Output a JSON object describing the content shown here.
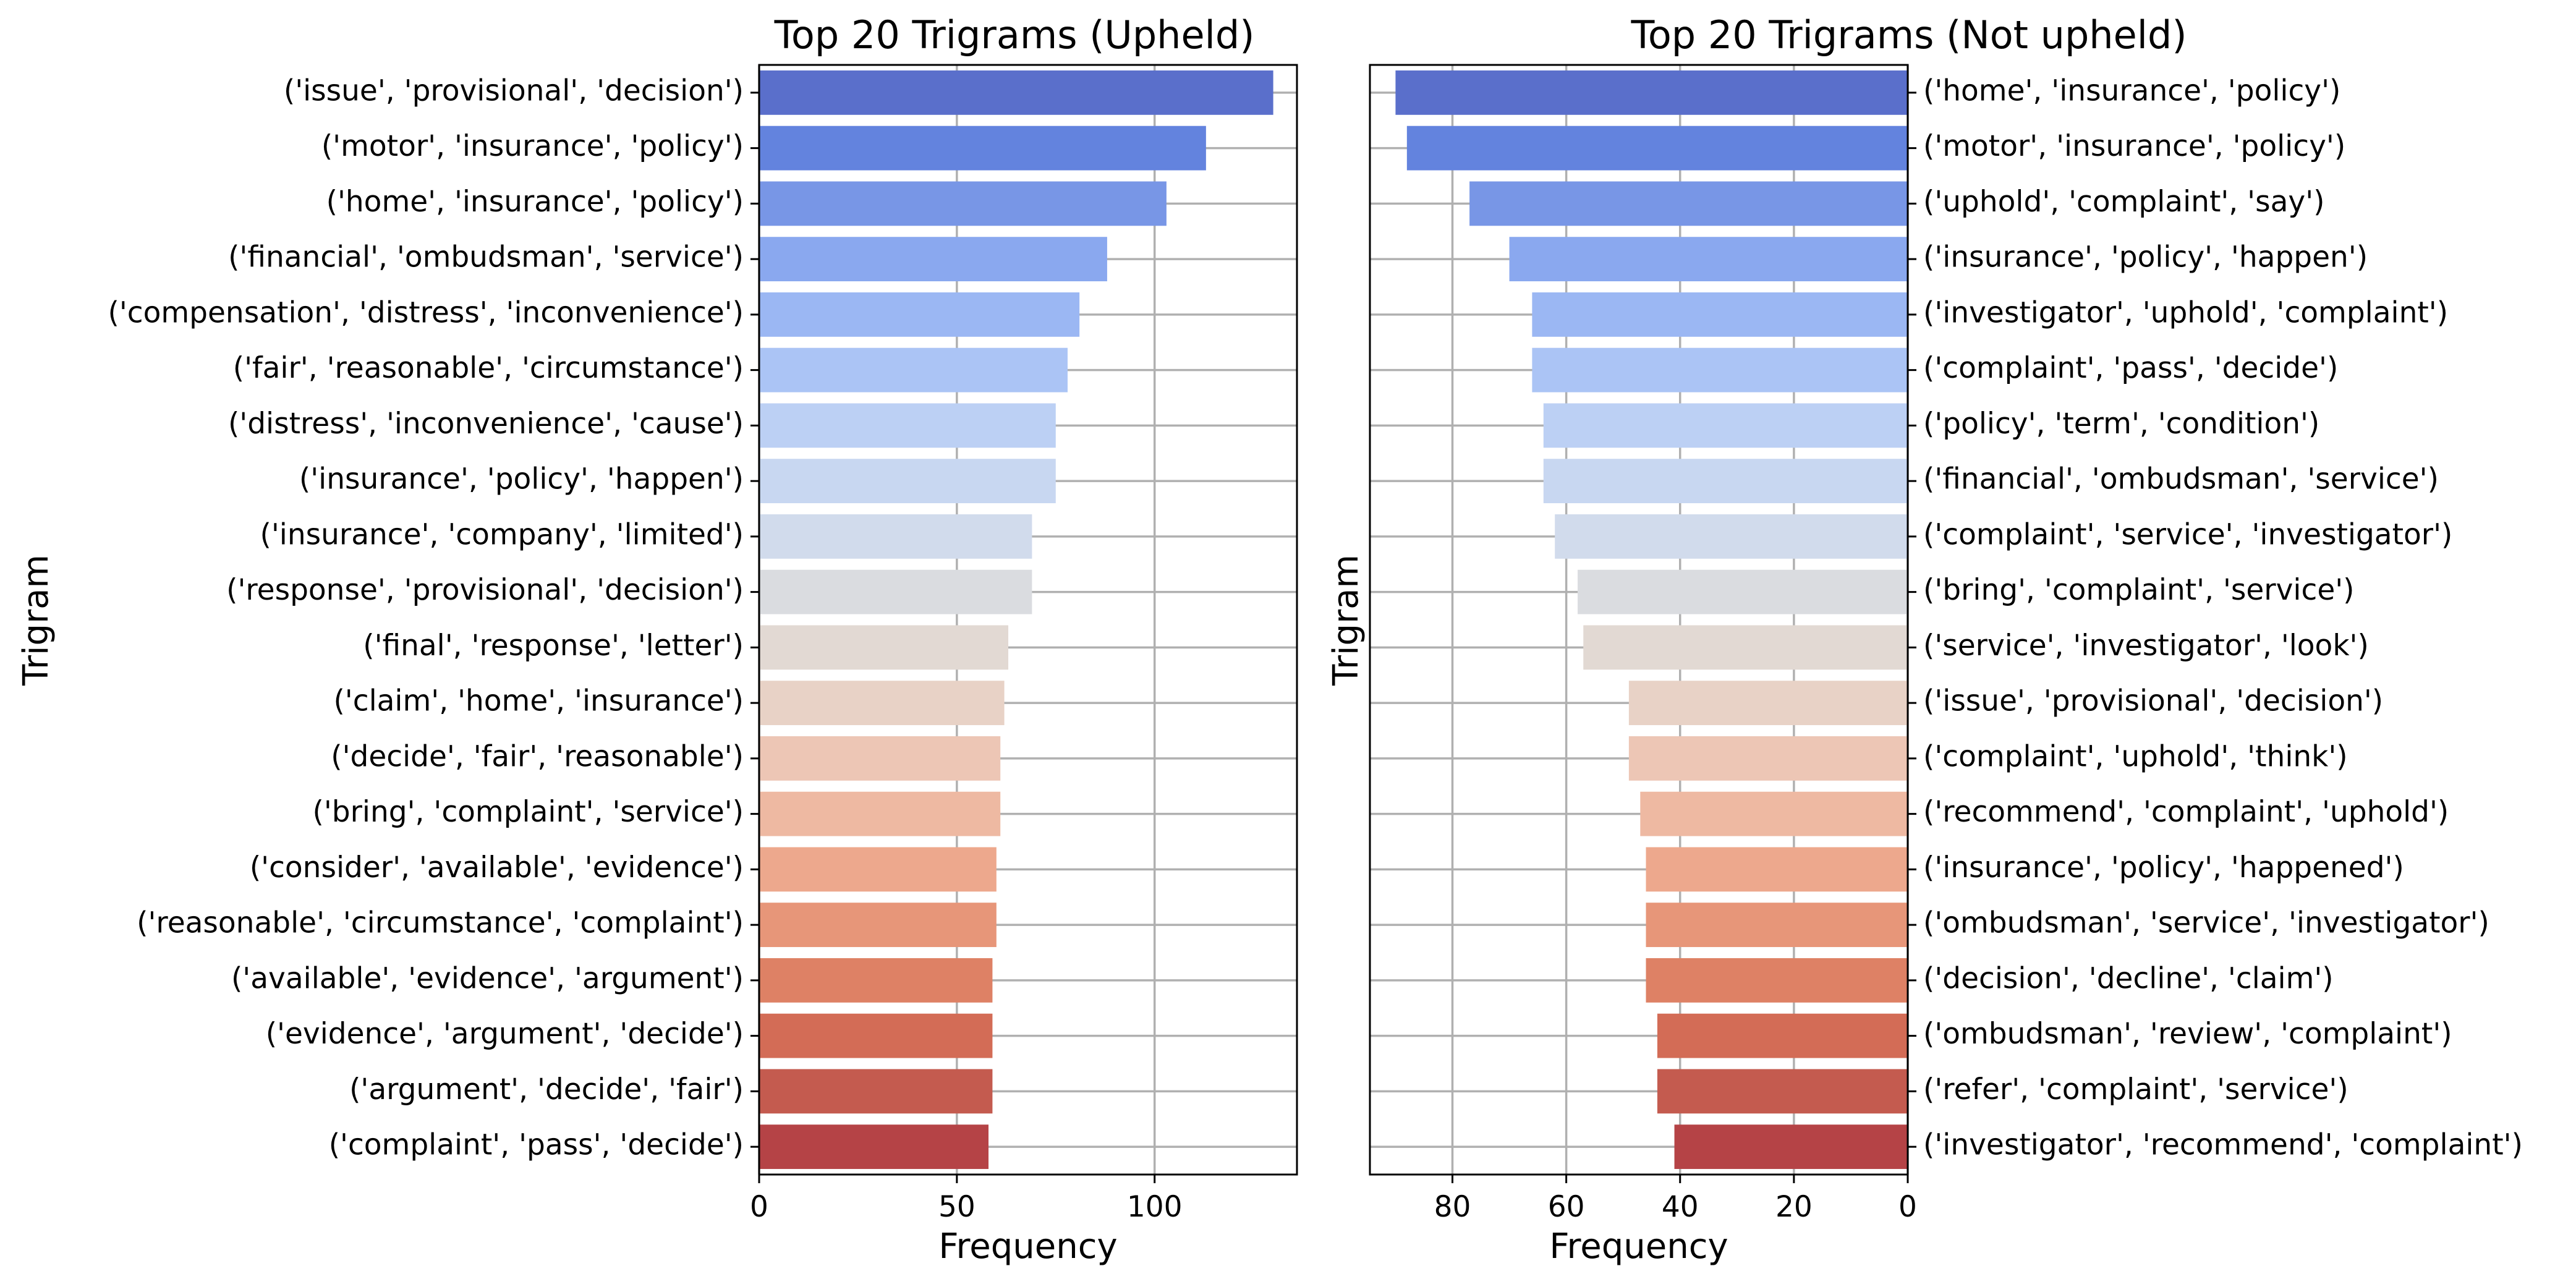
{
  "chart_data": [
    {
      "type": "bar",
      "orientation": "horizontal",
      "title": "Top 20 Trigrams (Upheld)",
      "xlabel": "Frequency",
      "ylabel": "Trigram",
      "xlim": [
        0,
        136
      ],
      "xticks": [
        0,
        50,
        100
      ],
      "x_inverted": false,
      "category_side": "left",
      "grid": true,
      "categories": [
        "('issue', 'provisional', 'decision')",
        "('motor', 'insurance', 'policy')",
        "('home', 'insurance', 'policy')",
        "('financial', 'ombudsman', 'service')",
        "('compensation', 'distress', 'inconvenience')",
        "('fair', 'reasonable', 'circumstance')",
        "('distress', 'inconvenience', 'cause')",
        "('insurance', 'policy', 'happen')",
        "('insurance', 'company', 'limited')",
        "('response', 'provisional', 'decision')",
        "('final', 'response', 'letter')",
        "('claim', 'home', 'insurance')",
        "('decide', 'fair', 'reasonable')",
        "('bring', 'complaint', 'service')",
        "('consider', 'available', 'evidence')",
        "('reasonable', 'circumstance', 'complaint')",
        "('available', 'evidence', 'argument')",
        "('evidence', 'argument', 'decide')",
        "('argument', 'decide', 'fair')",
        "('complaint', 'pass', 'decide')"
      ],
      "values": [
        130,
        113,
        103,
        88,
        81,
        78,
        75,
        75,
        69,
        69,
        63,
        62,
        61,
        61,
        60,
        60,
        59,
        59,
        59,
        58
      ]
    },
    {
      "type": "bar",
      "orientation": "horizontal",
      "title": "Top 20 Trigrams (Not upheld)",
      "xlabel": "Frequency",
      "ylabel": "Trigram",
      "xlim": [
        0,
        94.5
      ],
      "xticks": [
        80,
        60,
        40,
        20,
        0
      ],
      "x_inverted": true,
      "category_side": "right",
      "grid": true,
      "categories": [
        "('home', 'insurance', 'policy')",
        "('motor', 'insurance', 'policy')",
        "('uphold', 'complaint', 'say')",
        "('insurance', 'policy', 'happen')",
        "('investigator', 'uphold', 'complaint')",
        "('complaint', 'pass', 'decide')",
        "('policy', 'term', 'condition')",
        "('financial', 'ombudsman', 'service')",
        "('complaint', 'service', 'investigator')",
        "('bring', 'complaint', 'service')",
        "('service', 'investigator', 'look')",
        "('issue', 'provisional', 'decision')",
        "('complaint', 'uphold', 'think')",
        "('recommend', 'complaint', 'uphold')",
        "('insurance', 'policy', 'happened')",
        "('ombudsman', 'service', 'investigator')",
        "('decision', 'decline', 'claim')",
        "('ombudsman', 'review', 'complaint')",
        "('refer', 'complaint', 'service')",
        "('investigator', 'recommend', 'complaint')"
      ],
      "values": [
        90,
        88,
        77,
        70,
        66,
        66,
        64,
        64,
        62,
        58,
        57,
        49,
        49,
        47,
        46,
        46,
        46,
        44,
        44,
        41
      ]
    }
  ],
  "colors": [
    "#5a6fcb",
    "#6383de",
    "#7896e6",
    "#8aa8ef",
    "#9bb7f3",
    "#abc4f5",
    "#bcd0f4",
    "#c8d7f1",
    "#d1dbec",
    "#dadce0",
    "#e2d9d3",
    "#e8d2c6",
    "#edc6b5",
    "#eeb9a2",
    "#eda88d",
    "#e79679",
    "#de8165",
    "#d36c56",
    "#c45b4f",
    "#b54346"
  ]
}
